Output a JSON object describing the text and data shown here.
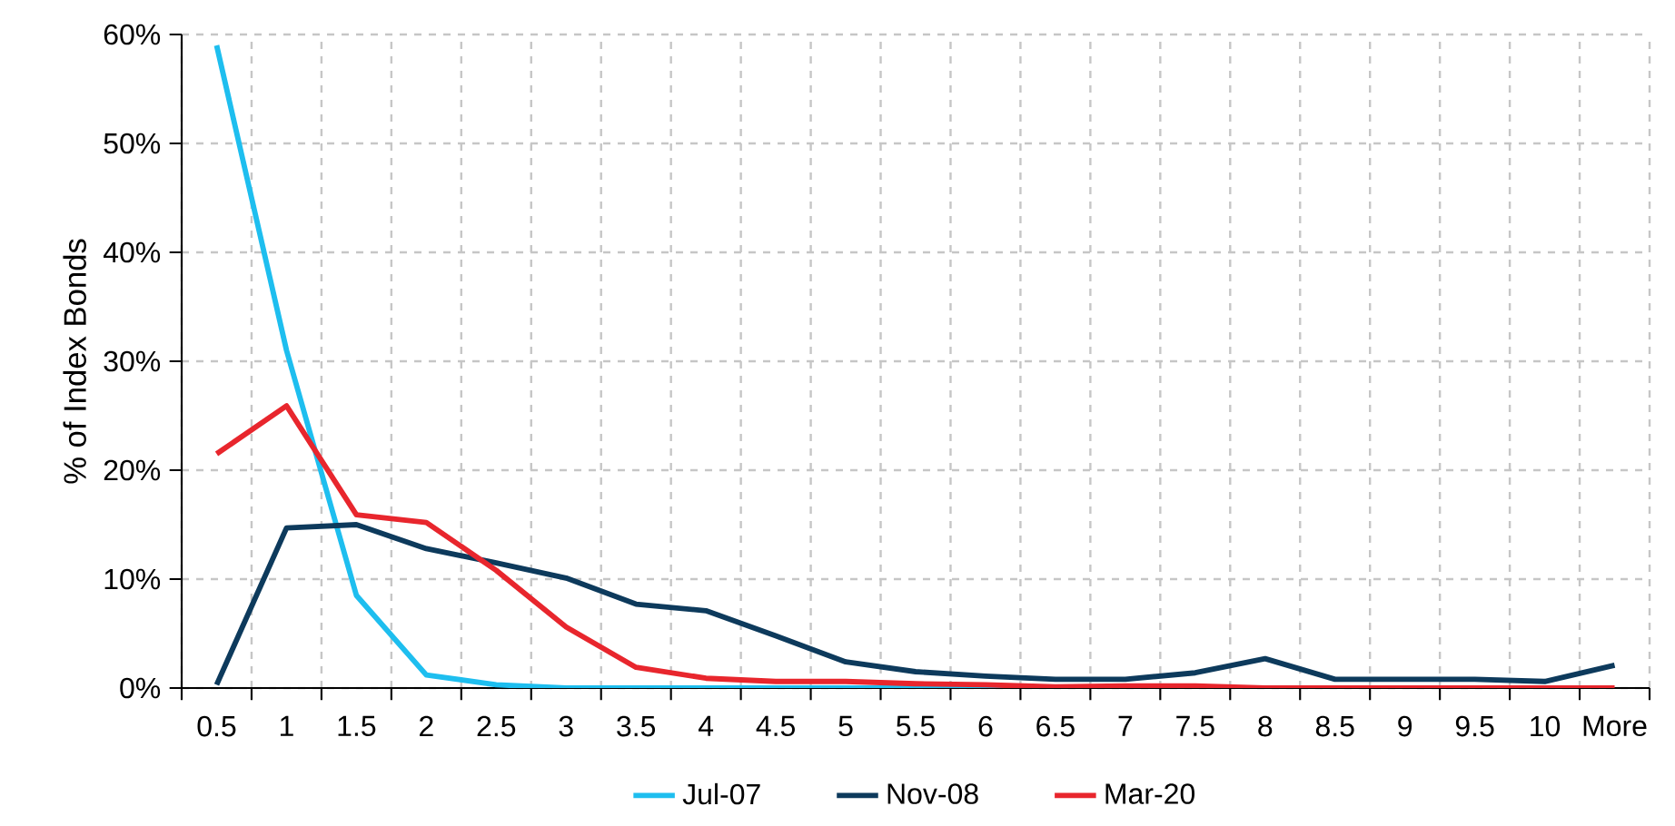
{
  "chart_data": {
    "type": "line",
    "ylabel": "% of Index Bonds",
    "categories": [
      "0.5",
      "1",
      "1.5",
      "2",
      "2.5",
      "3",
      "3.5",
      "4",
      "4.5",
      "5",
      "5.5",
      "6",
      "6.5",
      "7",
      "7.5",
      "8",
      "8.5",
      "9",
      "9.5",
      "10",
      "More"
    ],
    "series": [
      {
        "name": "Jul-07",
        "color": "#1ebeef",
        "values": [
          59,
          31,
          8.5,
          1.2,
          0.3,
          0,
          0,
          0,
          0,
          0,
          0,
          0,
          0,
          null,
          null,
          null,
          null,
          null,
          null,
          null,
          null
        ]
      },
      {
        "name": "Nov-08",
        "color": "#0d3a5c",
        "values": [
          0.3,
          14.7,
          15,
          12.8,
          11.5,
          10.1,
          7.7,
          7.1,
          4.8,
          2.4,
          1.5,
          1.1,
          0.8,
          0.8,
          1.4,
          2.7,
          0.8,
          0.8,
          0.8,
          0.6,
          2.1
        ]
      },
      {
        "name": "Mar-20",
        "color": "#e8262d",
        "values": [
          21.5,
          25.9,
          15.9,
          15.2,
          10.8,
          5.6,
          1.9,
          0.9,
          0.6,
          0.6,
          0.4,
          0.3,
          0.1,
          0.2,
          0.2,
          0,
          0,
          0,
          0,
          0,
          0
        ]
      }
    ],
    "ylim": [
      0,
      60
    ],
    "yticks": [
      {
        "value": 0,
        "label": "0%"
      },
      {
        "value": 10,
        "label": "10%"
      },
      {
        "value": 20,
        "label": "20%"
      },
      {
        "value": 30,
        "label": "30%"
      },
      {
        "value": 40,
        "label": "40%"
      },
      {
        "value": 50,
        "label": "50%"
      },
      {
        "value": 60,
        "label": "60%"
      }
    ],
    "grid": true,
    "legend": "bottom",
    "marker": "none",
    "line_style": "solid"
  }
}
